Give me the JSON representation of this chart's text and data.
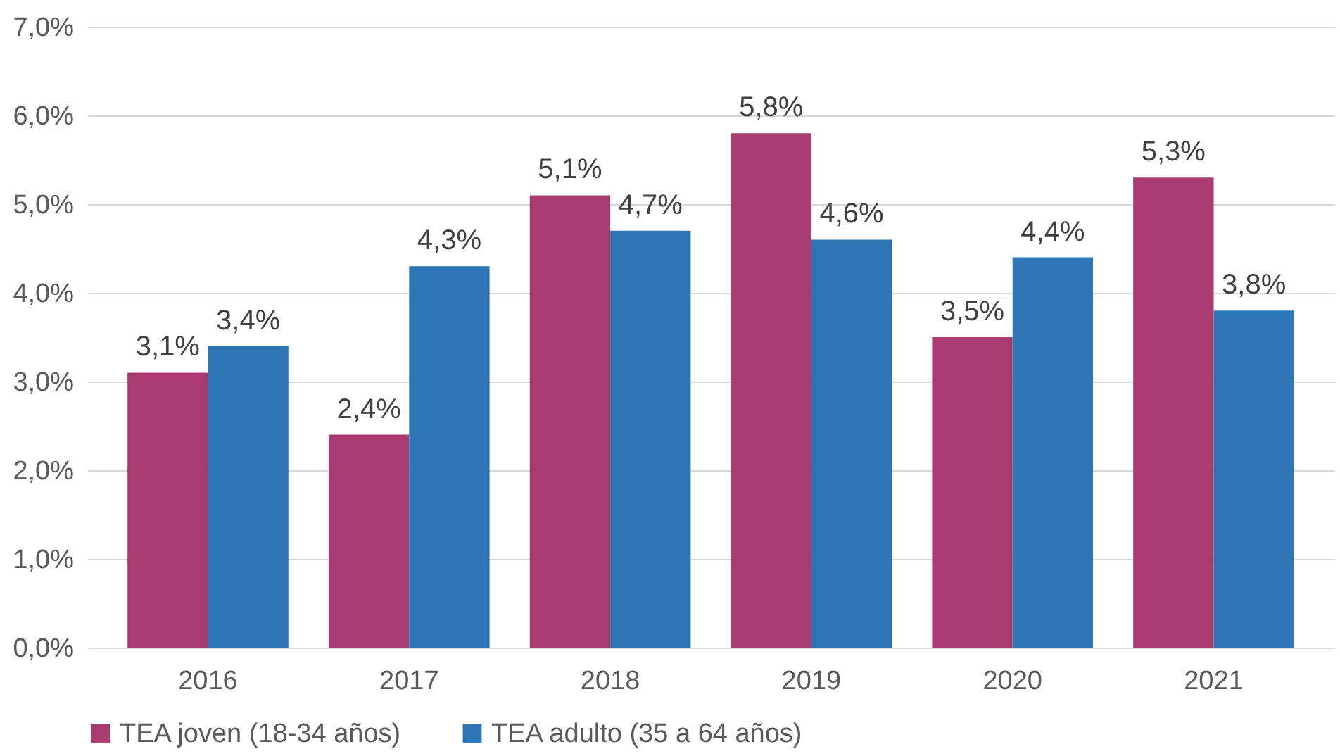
{
  "chart_data": {
    "type": "bar",
    "categories": [
      "2016",
      "2017",
      "2018",
      "2019",
      "2020",
      "2021"
    ],
    "series": [
      {
        "name": "TEA joven (18-34 años)",
        "color": "#a83c70",
        "values": [
          3.1,
          2.4,
          5.1,
          5.8,
          3.5,
          5.3
        ],
        "value_labels": [
          "3,1%",
          "2,4%",
          "5,1%",
          "5,8%",
          "3,5%",
          "5,3%"
        ]
      },
      {
        "name": "TEA adulto (35 a 64 años)",
        "color": "#2e75b6",
        "values": [
          3.4,
          4.3,
          4.7,
          4.6,
          4.4,
          3.8
        ],
        "value_labels": [
          "3,4%",
          "4,3%",
          "4,7%",
          "4,6%",
          "4,4%",
          "3,8%"
        ]
      }
    ],
    "ylim": [
      0,
      7
    ],
    "yticks": [
      {
        "value": 0,
        "label": "0,0%"
      },
      {
        "value": 1,
        "label": "1,0%"
      },
      {
        "value": 2,
        "label": "2,0%"
      },
      {
        "value": 3,
        "label": "3,0%"
      },
      {
        "value": 4,
        "label": "4,0%"
      },
      {
        "value": 5,
        "label": "5,0%"
      },
      {
        "value": 6,
        "label": "6,0%"
      },
      {
        "value": 7,
        "label": "7,0%"
      }
    ],
    "grid": "y",
    "legend": "bottom"
  }
}
